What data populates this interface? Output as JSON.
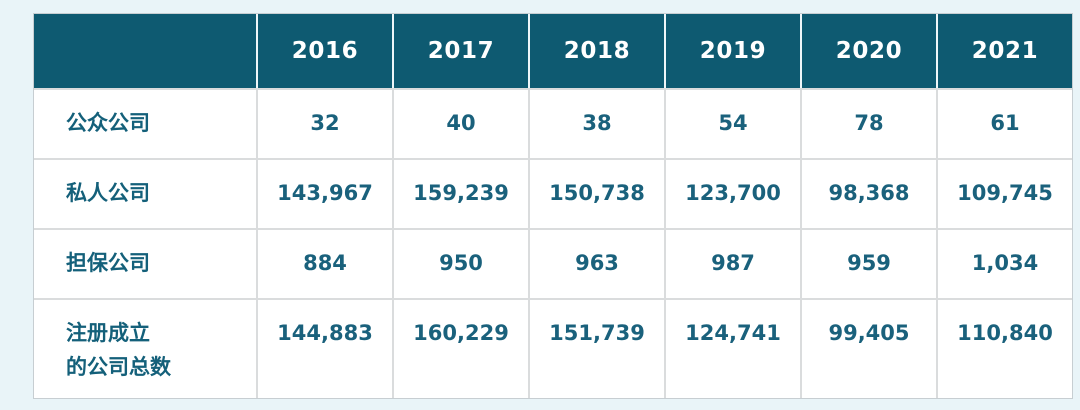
{
  "page": {
    "background_color": "#e9f4f8",
    "header_bg_color": "#0e5a71",
    "body_text_color": "#1a617c",
    "grid_line_color": "#dadcdd"
  },
  "table": {
    "header": {
      "corner": "",
      "columns": [
        "2016",
        "2017",
        "2018",
        "2019",
        "2020",
        "2021"
      ]
    },
    "rows": [
      {
        "label": "公众公司",
        "values": [
          "32",
          "40",
          "38",
          "54",
          "78",
          "61"
        ]
      },
      {
        "label": "私人公司",
        "values": [
          "143,967",
          "159,239",
          "150,738",
          "123,700",
          "98,368",
          "109,745"
        ]
      },
      {
        "label": "担保公司",
        "values": [
          "884",
          "950",
          "963",
          "987",
          "959",
          "1,034"
        ]
      },
      {
        "label": "注册成立\n的公司总数",
        "values": [
          "144,883",
          "160,229",
          "151,739",
          "124,741",
          "99,405",
          "110,840"
        ]
      }
    ]
  },
  "chart_data": {
    "type": "table",
    "title": "",
    "categories": [
      "2016",
      "2017",
      "2018",
      "2019",
      "2020",
      "2021"
    ],
    "series": [
      {
        "name": "公众公司",
        "values": [
          32,
          40,
          38,
          54,
          78,
          61
        ]
      },
      {
        "name": "私人公司",
        "values": [
          143967,
          159239,
          150738,
          123700,
          98368,
          109745
        ]
      },
      {
        "name": "担保公司",
        "values": [
          884,
          950,
          963,
          987,
          959,
          1034
        ]
      },
      {
        "name": "注册成立的公司总数",
        "values": [
          144883,
          160229,
          151739,
          124741,
          99405,
          110840
        ]
      }
    ]
  }
}
